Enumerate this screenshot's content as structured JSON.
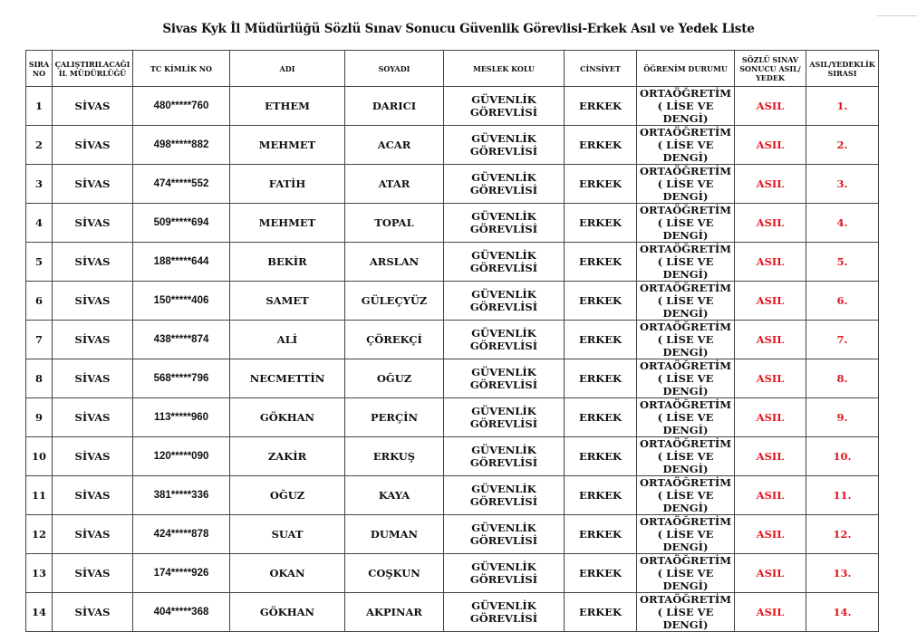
{
  "title": "Sivas Kyk İl Müdürlüğü Sözlü Sınav Sonucu Güvenlik Görevlisi-Erkek Asıl ve Yedek Liste",
  "colors": {
    "result": "#e0141e",
    "border": "#444444"
  },
  "headers": [
    "SIRA NO",
    "ÇALIŞTIRILACAĞI İL MÜDÜRLÜĞÜ",
    "TC KİMLİK NO",
    "ADI",
    "SOYADI",
    "MESLEK KOLU",
    "CİNSİYET",
    "ÖĞRENİM DURUMU",
    "SÖZLÜ SINAV SONUCU ASIL/ YEDEK",
    "ASIL/YEDEKLİK SIRASI"
  ],
  "rows": [
    {
      "no": "1",
      "il": "SİVAS",
      "tc": "480*****760",
      "adi": "ETHEM",
      "soyadi": "DARICI",
      "meslek": "GÜVENLİK GÖREVLİSİ",
      "cinsiyet": "ERKEK",
      "ogrenim1": "ORTAÖĞRETİM",
      "ogrenim2": "( LİSE VE DENGİ)",
      "sonuc": "ASIL",
      "sira": "1."
    },
    {
      "no": "2",
      "il": "SİVAS",
      "tc": "498*****882",
      "adi": "MEHMET",
      "soyadi": "ACAR",
      "meslek": "GÜVENLİK GÖREVLİSİ",
      "cinsiyet": "ERKEK",
      "ogrenim1": "ORTAÖĞRETİM",
      "ogrenim2": "( LİSE VE DENGİ)",
      "sonuc": "ASIL",
      "sira": "2."
    },
    {
      "no": "3",
      "il": "SİVAS",
      "tc": "474*****552",
      "adi": "FATİH",
      "soyadi": "ATAR",
      "meslek": "GÜVENLİK GÖREVLİSİ",
      "cinsiyet": "ERKEK",
      "ogrenim1": "ORTAÖĞRETİM",
      "ogrenim2": "( LİSE VE DENGİ)",
      "sonuc": "ASIL",
      "sira": "3."
    },
    {
      "no": "4",
      "il": "SİVAS",
      "tc": "509*****694",
      "adi": "MEHMET",
      "soyadi": "TOPAL",
      "meslek": "GÜVENLİK GÖREVLİSİ",
      "cinsiyet": "ERKEK",
      "ogrenim1": "ORTAÖĞRETİM",
      "ogrenim2": "( LİSE VE DENGİ)",
      "sonuc": "ASIL",
      "sira": "4."
    },
    {
      "no": "5",
      "il": "SİVAS",
      "tc": "188*****644",
      "adi": "BEKİR",
      "soyadi": "ARSLAN",
      "meslek": "GÜVENLİK GÖREVLİSİ",
      "cinsiyet": "ERKEK",
      "ogrenim1": "ORTAÖĞRETİM",
      "ogrenim2": "( LİSE VE DENGİ)",
      "sonuc": "ASIL",
      "sira": "5."
    },
    {
      "no": "6",
      "il": "SİVAS",
      "tc": "150*****406",
      "adi": "SAMET",
      "soyadi": "GÜLEÇYÜZ",
      "meslek": "GÜVENLİK GÖREVLİSİ",
      "cinsiyet": "ERKEK",
      "ogrenim1": "ORTAÖĞRETİM",
      "ogrenim2": "( LİSE VE DENGİ)",
      "sonuc": "ASIL",
      "sira": "6."
    },
    {
      "no": "7",
      "il": "SİVAS",
      "tc": "438*****874",
      "adi": "ALİ",
      "soyadi": "ÇÖREKÇİ",
      "meslek": "GÜVENLİK GÖREVLİSİ",
      "cinsiyet": "ERKEK",
      "ogrenim1": "ORTAÖĞRETİM",
      "ogrenim2": "( LİSE VE DENGİ)",
      "sonuc": "ASIL",
      "sira": "7."
    },
    {
      "no": "8",
      "il": "SİVAS",
      "tc": "568*****796",
      "adi": "NECMETTİN",
      "soyadi": "OĞUZ",
      "meslek": "GÜVENLİK GÖREVLİSİ",
      "cinsiyet": "ERKEK",
      "ogrenim1": "ORTAÖĞRETİM",
      "ogrenim2": "( LİSE VE DENGİ)",
      "sonuc": "ASIL",
      "sira": "8."
    },
    {
      "no": "9",
      "il": "SİVAS",
      "tc": "113*****960",
      "adi": "GÖKHAN",
      "soyadi": "PERÇİN",
      "meslek": "GÜVENLİK GÖREVLİSİ",
      "cinsiyet": "ERKEK",
      "ogrenim1": "ORTAÖĞRETİM",
      "ogrenim2": "( LİSE VE DENGİ)",
      "sonuc": "ASIL",
      "sira": "9."
    },
    {
      "no": "10",
      "il": "SİVAS",
      "tc": "120*****090",
      "adi": "ZAKİR",
      "soyadi": "ERKUŞ",
      "meslek": "GÜVENLİK GÖREVLİSİ",
      "cinsiyet": "ERKEK",
      "ogrenim1": "ORTAÖĞRETİM",
      "ogrenim2": "( LİSE VE DENGİ)",
      "sonuc": "ASIL",
      "sira": "10."
    },
    {
      "no": "11",
      "il": "SİVAS",
      "tc": "381*****336",
      "adi": "OĞUZ",
      "soyadi": "KAYA",
      "meslek": "GÜVENLİK GÖREVLİSİ",
      "cinsiyet": "ERKEK",
      "ogrenim1": "ORTAÖĞRETİM",
      "ogrenim2": "( LİSE VE DENGİ)",
      "sonuc": "ASIL",
      "sira": "11."
    },
    {
      "no": "12",
      "il": "SİVAS",
      "tc": "424*****878",
      "adi": "SUAT",
      "soyadi": "DUMAN",
      "meslek": "GÜVENLİK GÖREVLİSİ",
      "cinsiyet": "ERKEK",
      "ogrenim1": "ORTAÖĞRETİM",
      "ogrenim2": "( LİSE VE DENGİ)",
      "sonuc": "ASIL",
      "sira": "12."
    },
    {
      "no": "13",
      "il": "SİVAS",
      "tc": "174*****926",
      "adi": "OKAN",
      "soyadi": "COŞKUN",
      "meslek": "GÜVENLİK GÖREVLİSİ",
      "cinsiyet": "ERKEK",
      "ogrenim1": "ORTAÖĞRETİM",
      "ogrenim2": "( LİSE VE DENGİ)",
      "sonuc": "ASIL",
      "sira": "13."
    },
    {
      "no": "14",
      "il": "SİVAS",
      "tc": "404*****368",
      "adi": "GÖKHAN",
      "soyadi": "AKPINAR",
      "meslek": "GÜVENLİK GÖREVLİSİ",
      "cinsiyet": "ERKEK",
      "ogrenim1": "ORTAÖĞRETİM",
      "ogrenim2": "( LİSE VE DENGİ)",
      "sonuc": "ASIL",
      "sira": "14."
    }
  ]
}
